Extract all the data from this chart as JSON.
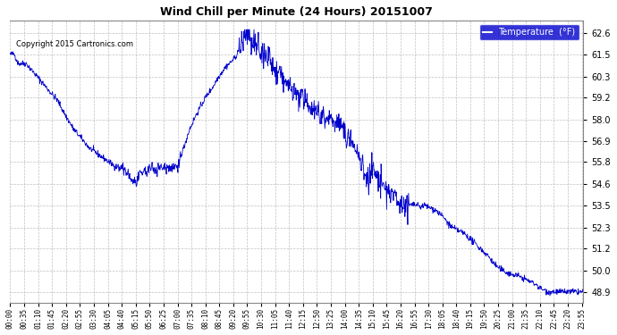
{
  "title": "Wind Chill per Minute (24 Hours) 20151007",
  "copyright": "Copyright 2015 Cartronics.com",
  "legend_label": "Temperature  (°F)",
  "line_color": "#0000cc",
  "bg_color": "#ffffff",
  "plot_bg_color": "#ffffff",
  "grid_color": "#b0b0b0",
  "ylim": [
    48.3,
    63.3
  ],
  "yticks": [
    48.9,
    50.0,
    51.2,
    52.3,
    53.5,
    54.6,
    55.8,
    56.9,
    58.0,
    59.2,
    60.3,
    61.5,
    62.6
  ],
  "num_minutes": 1440,
  "x_tick_interval": 35,
  "x_tick_labels": [
    "00:00",
    "00:35",
    "01:10",
    "01:45",
    "02:20",
    "02:55",
    "03:30",
    "04:05",
    "04:40",
    "05:15",
    "05:50",
    "06:25",
    "07:00",
    "07:35",
    "08:10",
    "08:45",
    "09:20",
    "09:55",
    "10:30",
    "11:05",
    "11:40",
    "12:15",
    "12:50",
    "13:25",
    "14:00",
    "14:35",
    "15:10",
    "15:45",
    "16:20",
    "16:55",
    "17:30",
    "18:05",
    "18:40",
    "19:15",
    "19:50",
    "20:25",
    "21:00",
    "21:35",
    "22:10",
    "22:45",
    "23:20",
    "23:55"
  ],
  "figsize": [
    6.9,
    3.75
  ],
  "dpi": 100
}
